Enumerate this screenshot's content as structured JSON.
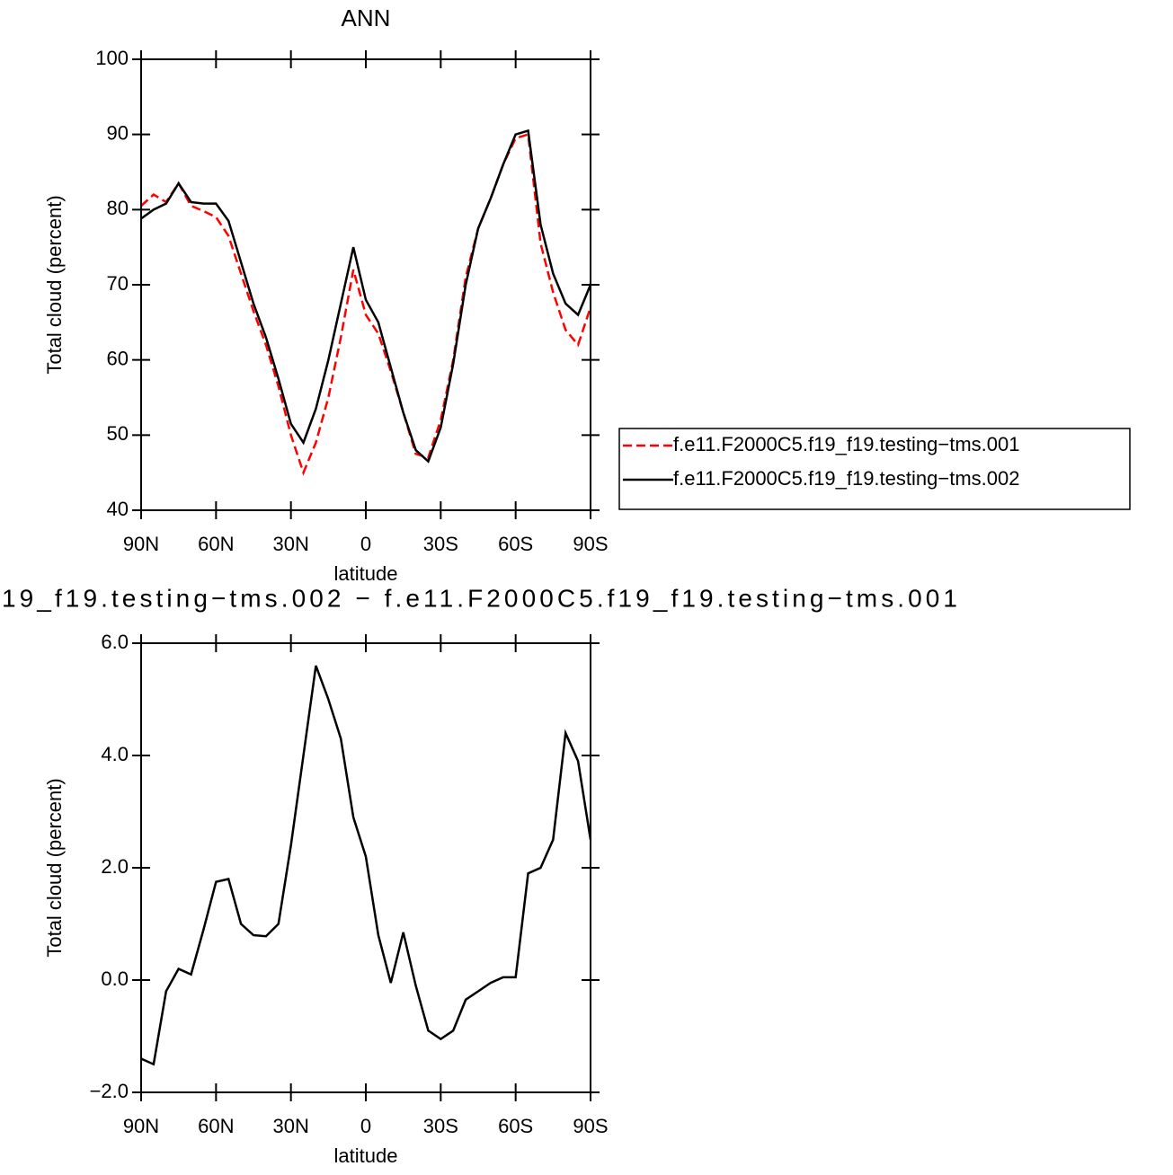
{
  "chart_data": [
    {
      "type": "line",
      "title": "ANN",
      "xlabel": "latitude",
      "ylabel": "Total cloud (percent)",
      "x": [
        90,
        85,
        80,
        75,
        70,
        65,
        60,
        55,
        50,
        45,
        40,
        35,
        30,
        25,
        20,
        15,
        10,
        5,
        0,
        -5,
        -10,
        -15,
        -20,
        -25,
        -30,
        -35,
        -40,
        -45,
        -50,
        -55,
        -60,
        -65,
        -70,
        -75,
        -80,
        -85,
        -90
      ],
      "series": [
        {
          "name": "f.e11.F2000C5.f19_f19.testing−tms.001",
          "color": "#ff0000",
          "dash": true,
          "values": [
            80.5,
            82,
            81,
            83.5,
            80.5,
            79.8,
            79,
            76.5,
            71.5,
            66.5,
            62,
            56.5,
            50,
            45,
            49,
            55,
            63,
            72,
            66,
            63.5,
            58.5,
            53,
            47.5,
            47,
            52,
            60,
            71,
            77.5,
            81.5,
            86,
            89.5,
            90,
            75.5,
            69,
            64,
            62,
            67
          ]
        },
        {
          "name": "f.e11.F2000C5.f19_f19.testing−tms.002",
          "color": "#000000",
          "dash": false,
          "values": [
            78.8,
            80,
            80.8,
            83.5,
            81,
            80.8,
            80.8,
            78.5,
            73,
            67.5,
            63,
            57.5,
            51.5,
            49,
            53.5,
            60,
            67.5,
            75,
            68,
            65,
            59,
            53,
            48,
            46.5,
            51,
            59.5,
            70,
            77.5,
            81.5,
            86,
            90,
            90.5,
            78,
            71.5,
            67.5,
            66,
            70
          ]
        }
      ],
      "xlim": [
        90,
        -90
      ],
      "xticks": [
        {
          "value": 90,
          "label": "90N"
        },
        {
          "value": 60,
          "label": "60N"
        },
        {
          "value": 30,
          "label": "30N"
        },
        0,
        {
          "value": -30,
          "label": "30S"
        },
        {
          "value": -60,
          "label": "60S"
        },
        {
          "value": -90,
          "label": "90S"
        }
      ],
      "ylim": [
        40,
        100
      ],
      "yticks": [
        40,
        50,
        60,
        70,
        80,
        90,
        100
      ],
      "legend": "right"
    },
    {
      "type": "line",
      "title": "19_f19.testing−tms.002 − f.e11.F2000C5.f19_f19.testing−tms.001",
      "xlabel": "latitude",
      "ylabel": "Total cloud (percent)",
      "x": [
        90,
        85,
        80,
        75,
        70,
        65,
        60,
        55,
        50,
        45,
        40,
        35,
        30,
        25,
        20,
        15,
        10,
        5,
        0,
        -5,
        -10,
        -15,
        -20,
        -25,
        -30,
        -35,
        -40,
        -45,
        -50,
        -55,
        -60,
        -65,
        -70,
        -75,
        -80,
        -85,
        -90
      ],
      "series": [
        {
          "color": "#000000",
          "dash": false,
          "values": [
            -1.4,
            -1.5,
            -0.2,
            0.2,
            0.1,
            0.9,
            1.75,
            1.8,
            1.0,
            0.8,
            0.78,
            1.0,
            2.4,
            4.0,
            5.6,
            5.0,
            4.3,
            2.9,
            2.2,
            0.8,
            -0.05,
            0.85,
            -0.1,
            -0.9,
            -1.05,
            -0.9,
            -0.35,
            -0.2,
            -0.05,
            0.05,
            0.05,
            1.9,
            2.0,
            2.5,
            4.4,
            3.9,
            2.5
          ]
        }
      ],
      "xlim": [
        90,
        -90
      ],
      "xticks": [
        {
          "value": 90,
          "label": "90N"
        },
        {
          "value": 60,
          "label": "60N"
        },
        {
          "value": 30,
          "label": "30N"
        },
        0,
        {
          "value": -30,
          "label": "30S"
        },
        {
          "value": -60,
          "label": "60S"
        },
        {
          "value": -90,
          "label": "90S"
        }
      ],
      "ylim": [
        -2,
        6
      ],
      "yticks": [
        {
          "value": -2,
          "label": "−2.0"
        },
        {
          "value": 0,
          "label": "0.0"
        },
        {
          "value": 2,
          "label": "2.0"
        },
        {
          "value": 4,
          "label": "4.0"
        },
        {
          "value": 6,
          "label": "6.0"
        }
      ]
    }
  ]
}
